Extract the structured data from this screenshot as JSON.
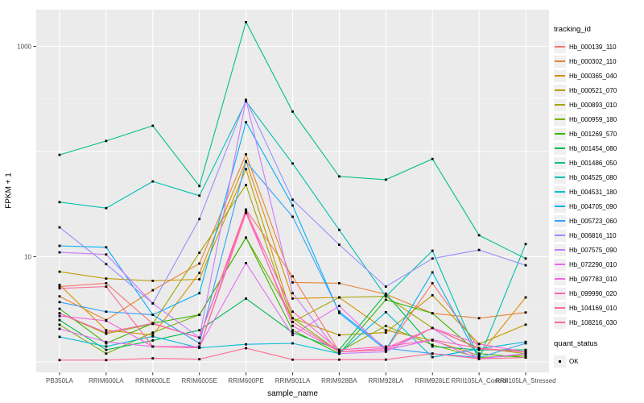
{
  "panel": {
    "background": "#EBEBEB",
    "grid_major_color": "#FFFFFF",
    "grid_minor_color": "#F5F5F5",
    "tick_color": "#333333",
    "tick_label_color": "#4D4D4D",
    "point_color": "#000000"
  },
  "chart_data": {
    "type": "line",
    "title": "",
    "xlabel": "sample_name",
    "ylabel": "FPKM + 1",
    "y_scale": "log10",
    "ylim": [
      0.8,
      2200
    ],
    "grid": true,
    "legend_position": "right",
    "legend_title": "tracking_id",
    "quant_status": {
      "title": "quant_status",
      "ok_label": "OK",
      "point_shape": "black-square"
    },
    "y_axis_ticks": [
      {
        "value": 1000,
        "label": "1000"
      },
      {
        "value": 10,
        "label": "10"
      }
    ],
    "y_grid_major": [
      1,
      10,
      100,
      1000
    ],
    "y_grid_minor": [
      3.162,
      31.623,
      316.228
    ],
    "categories": [
      "PB350LA",
      "RRIM600LA",
      "RRIM600LE",
      "RRIM600SE",
      "RRIM600PE",
      "RRIM901LA",
      "RRIM928BA",
      "RRIM928LA",
      "RRIM928LE",
      "RRII105LA_Control",
      "RRII105LA_Stressed"
    ],
    "series": [
      {
        "name": "Hb_000139_110",
        "color": "#F8766D",
        "values": [
          5.2,
          5.6,
          2.3,
          1.7,
          28,
          6.5,
          1.25,
          1.3,
          5.6,
          1.35,
          1.25
        ]
      },
      {
        "name": "Hb_000302_110",
        "color": "#EA8331",
        "values": [
          4.2,
          2.5,
          4.8,
          8.6,
          94,
          5.7,
          5.6,
          4.4,
          2.9,
          2.6,
          2.95
        ]
      },
      {
        "name": "Hb_000365_040",
        "color": "#D89000",
        "values": [
          5.4,
          2.0,
          1.8,
          7.0,
          81,
          4.0,
          4.1,
          2.0,
          1.6,
          1.15,
          4.1
        ]
      },
      {
        "name": "Hb_000521_070",
        "color": "#C09B00",
        "values": [
          7.2,
          6.2,
          5.9,
          6.1,
          68,
          2.6,
          1.8,
          1.9,
          4.3,
          1.48,
          2.26
        ]
      },
      {
        "name": "Hb_000893_010",
        "color": "#A3A500",
        "values": [
          2.9,
          1.85,
          2.3,
          10.9,
          48,
          2.4,
          4.1,
          4.2,
          2.1,
          1.35,
          1.2
        ]
      },
      {
        "name": "Hb_000959_180",
        "color": "#7CAE00",
        "values": [
          2.26,
          1.2,
          1.9,
          2.8,
          15.2,
          2.6,
          1.25,
          2.2,
          1.45,
          1.1,
          1.15
        ]
      },
      {
        "name": "Hb_001269_570",
        "color": "#39B600",
        "values": [
          3.2,
          1.5,
          2.33,
          2.8,
          15.2,
          2.0,
          1.2,
          3.9,
          2.9,
          1.2,
          1.1
        ]
      },
      {
        "name": "Hb_001454_080",
        "color": "#00BB4E",
        "values": [
          2.5,
          1.3,
          1.6,
          2.0,
          4.0,
          1.9,
          1.3,
          4.45,
          1.4,
          1.3,
          1.3
        ]
      },
      {
        "name": "Hb_001486_050",
        "color": "#00C087",
        "values": [
          93,
          126,
          176,
          47,
          1700,
          240,
          58,
          54,
          85,
          16,
          9.6
        ]
      },
      {
        "name": "Hb_004525_080",
        "color": "#00C0AF",
        "values": [
          33,
          29,
          52,
          38,
          300,
          77,
          18,
          4.2,
          11.4,
          1.07,
          13.2
        ]
      },
      {
        "name": "Hb_004531_180",
        "color": "#00BCD8",
        "values": [
          1.73,
          1.4,
          1.75,
          1.36,
          1.47,
          1.5,
          1.2,
          2.97,
          1.11,
          1.33,
          1.55
        ]
      },
      {
        "name": "Hb_004705_090",
        "color": "#00B0F6",
        "values": [
          12.7,
          12.3,
          2.8,
          4.5,
          190,
          30.7,
          2.92,
          1.3,
          7.1,
          1.07,
          1.2
        ]
      },
      {
        "name": "Hb_005723_060",
        "color": "#35A2FF",
        "values": [
          3.7,
          3.0,
          2.8,
          1.5,
          80,
          24,
          3.0,
          1.35,
          1.2,
          1.1,
          1.5
        ]
      },
      {
        "name": "Hb_006816_110",
        "color": "#9590FF",
        "values": [
          19,
          8.5,
          3.6,
          22.8,
          310,
          34.8,
          13,
          5.2,
          9.6,
          11.6,
          8.3
        ]
      },
      {
        "name": "Hb_007575_090",
        "color": "#C77CFF",
        "values": [
          11,
          10.5,
          3.6,
          1.7,
          310,
          4.5,
          1.2,
          1.25,
          2.1,
          1.07,
          1.2
        ]
      },
      {
        "name": "Hb_072290_010",
        "color": "#E76BF3",
        "values": [
          2.06,
          1.55,
          1.4,
          1.4,
          8.7,
          1.8,
          3.4,
          1.3,
          1.62,
          1.07,
          1.2
        ]
      },
      {
        "name": "Hb_097783_010",
        "color": "#FA62DB",
        "values": [
          2.73,
          2.46,
          1.4,
          1.36,
          28,
          2.2,
          1.25,
          1.35,
          2.1,
          1.48,
          1.24
        ]
      },
      {
        "name": "Hb_099990_020",
        "color": "#FF62BC",
        "values": [
          2.9,
          1.9,
          2.33,
          1.7,
          27,
          3.0,
          1.3,
          1.4,
          1.62,
          1.35,
          1.24
        ]
      },
      {
        "name": "Hb_104169_010",
        "color": "#FF6A9A",
        "values": [
          5.0,
          5.2,
          1.4,
          1.36,
          26,
          2.4,
          1.25,
          1.3,
          2.1,
          1.33,
          1.25
        ]
      },
      {
        "name": "Hb_108216_030",
        "color": "#FF6C91",
        "values": [
          1.04,
          1.04,
          1.08,
          1.06,
          1.35,
          1.05,
          1.05,
          1.05,
          1.2,
          1.07,
          1.1
        ]
      }
    ]
  }
}
